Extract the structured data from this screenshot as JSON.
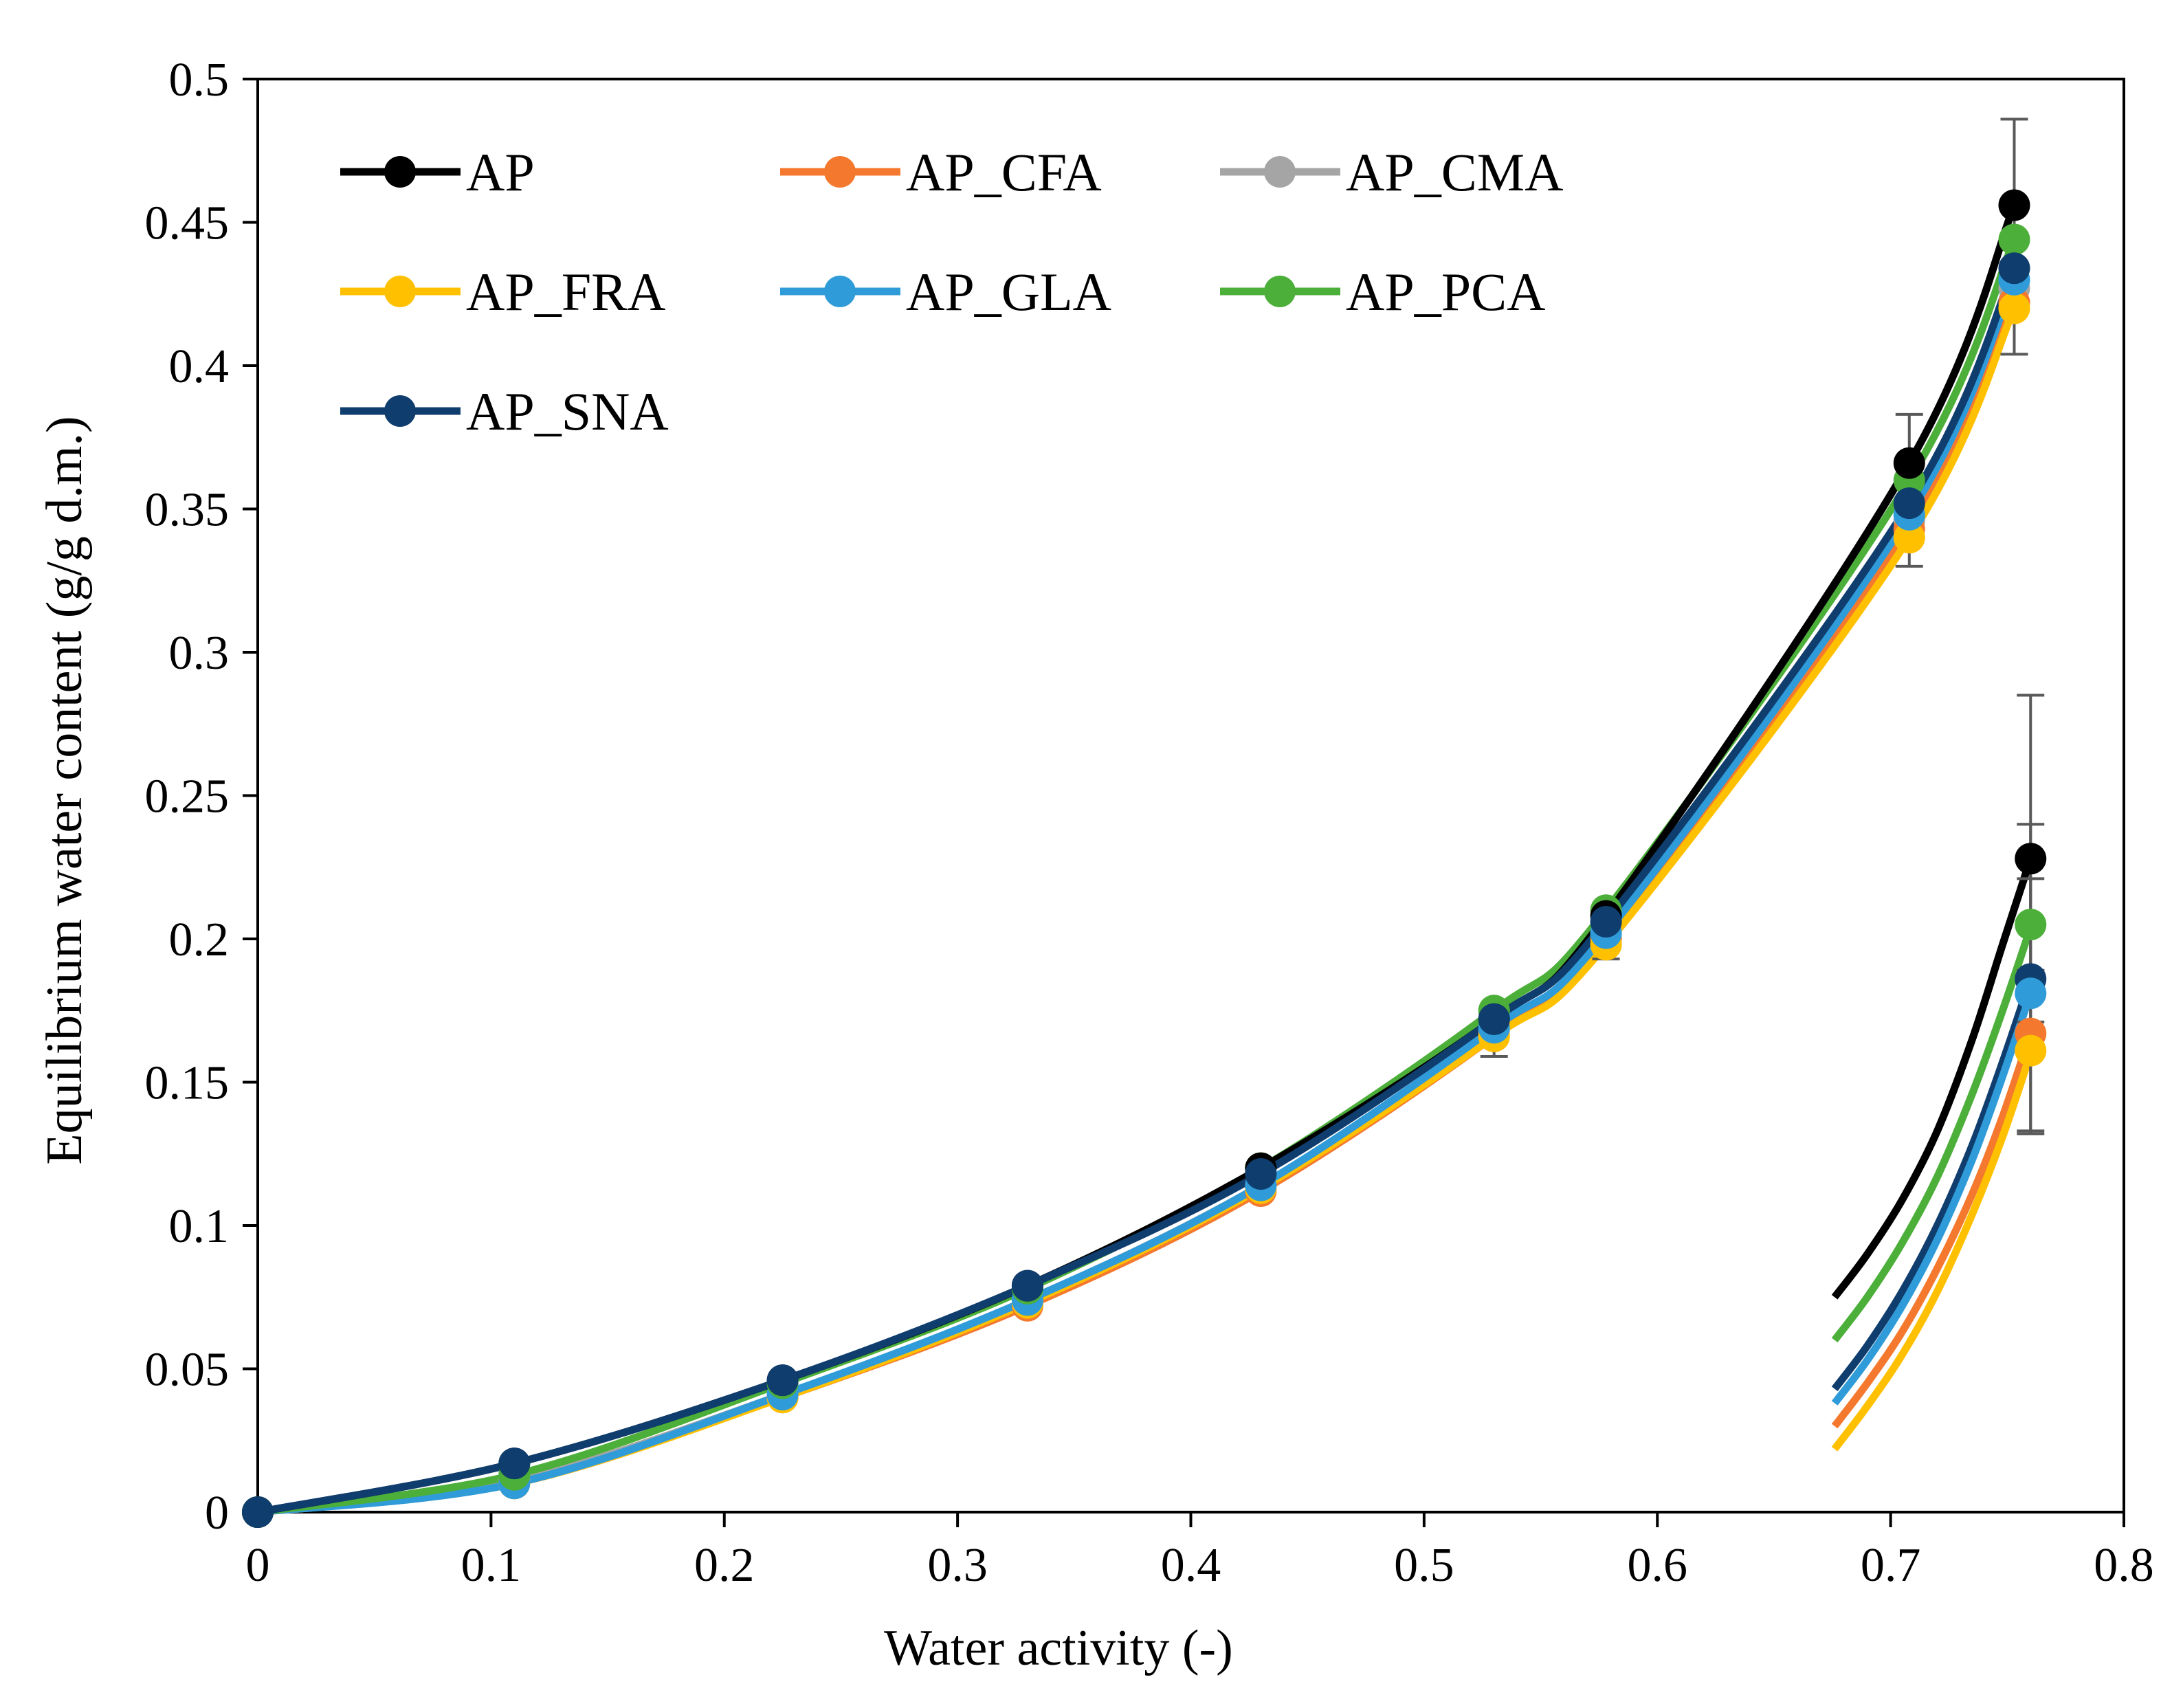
{
  "chart_data": {
    "type": "line",
    "xlabel": "Water activity (-)",
    "ylabel": "Equilibrium water content (g/g d.m.)",
    "xlim": [
      0,
      0.8
    ],
    "ylim": [
      0,
      0.5
    ],
    "xticks": [
      "0",
      "0.1",
      "0.2",
      "0.3",
      "0.4",
      "0.5",
      "0.6",
      "0.7",
      "0.8"
    ],
    "yticks": [
      "0",
      "0.05",
      "0.1",
      "0.15",
      "0.2",
      "0.25",
      "0.3",
      "0.35",
      "0.4",
      "0.45",
      "0.5"
    ],
    "grid": false,
    "legend_position": "top-left",
    "error_bars": true,
    "series": [
      {
        "name": "AP",
        "color": "#000000",
        "x": [
          0,
          0.11,
          0.225,
          0.33,
          0.43,
          0.53,
          0.578,
          0.708,
          0.753
        ],
        "y": [
          0,
          0.017,
          0.046,
          0.079,
          0.12,
          0.172,
          0.208,
          0.366,
          0.456
        ],
        "err": [
          0,
          0,
          0,
          0,
          0,
          0,
          0,
          0.017,
          0.03
        ]
      },
      {
        "name": "AP_CFA",
        "color": "#F4792F",
        "x": [
          0,
          0.11,
          0.225,
          0.33,
          0.43,
          0.53,
          0.578,
          0.708,
          0.753
        ],
        "y": [
          0,
          0.01,
          0.04,
          0.072,
          0.112,
          0.166,
          0.2,
          0.343,
          0.422
        ],
        "err": [
          0,
          0,
          0,
          0,
          0,
          0,
          0,
          0,
          0
        ]
      },
      {
        "name": "AP_CMA",
        "color": "#A5A5A5",
        "x": [
          0,
          0.11,
          0.225,
          0.33,
          0.43,
          0.53,
          0.578,
          0.708,
          0.753
        ],
        "y": [
          0,
          0.011,
          0.041,
          0.074,
          0.114,
          0.168,
          0.202,
          0.346,
          0.427
        ],
        "err": [
          0,
          0,
          0,
          0,
          0,
          0,
          0,
          0,
          0
        ]
      },
      {
        "name": "AP_FRA",
        "color": "#FFC000",
        "x": [
          0,
          0.11,
          0.225,
          0.33,
          0.43,
          0.53,
          0.578,
          0.708,
          0.753
        ],
        "y": [
          0,
          0.01,
          0.04,
          0.073,
          0.113,
          0.166,
          0.198,
          0.34,
          0.42
        ],
        "err": [
          0,
          0,
          0,
          0,
          0,
          0.007,
          0.005,
          0.01,
          0.016
        ]
      },
      {
        "name": "AP_GLA",
        "color": "#2F9BD9",
        "x": [
          0,
          0.11,
          0.225,
          0.33,
          0.43,
          0.53,
          0.578,
          0.708,
          0.753
        ],
        "y": [
          0,
          0.01,
          0.041,
          0.074,
          0.114,
          0.169,
          0.202,
          0.348,
          0.43
        ],
        "err": [
          0,
          0,
          0,
          0,
          0,
          0,
          0,
          0,
          0
        ]
      },
      {
        "name": "AP_PCA",
        "color": "#4CAF3A",
        "x": [
          0,
          0.11,
          0.225,
          0.33,
          0.43,
          0.53,
          0.578,
          0.708,
          0.753
        ],
        "y": [
          0,
          0.013,
          0.045,
          0.078,
          0.12,
          0.175,
          0.21,
          0.36,
          0.444
        ],
        "err": [
          0,
          0,
          0,
          0,
          0,
          0,
          0,
          0,
          0
        ]
      },
      {
        "name": "AP_SNA",
        "color": "#0F3D6E",
        "x": [
          0,
          0.11,
          0.225,
          0.33,
          0.43,
          0.53,
          0.578,
          0.708,
          0.753
        ],
        "y": [
          0,
          0.017,
          0.046,
          0.079,
          0.118,
          0.172,
          0.206,
          0.352,
          0.434
        ],
        "err": [
          0,
          0,
          0,
          0,
          0,
          0,
          0,
          0,
          0
        ]
      }
    ],
    "fragments": [
      {
        "name": "AP",
        "color": "#000000",
        "x": [
          0.676,
          0.69,
          0.705,
          0.72,
          0.735,
          0.748,
          0.76
        ],
        "y": [
          0.075,
          0.09,
          0.109,
          0.133,
          0.165,
          0.198,
          0.228
        ],
        "err": 0.057,
        "marker_x": 0.76,
        "marker_y": 0.228
      },
      {
        "name": "AP_PCA",
        "color": "#4CAF3A",
        "x": [
          0.676,
          0.69,
          0.705,
          0.72,
          0.735,
          0.748,
          0.76
        ],
        "y": [
          0.06,
          0.075,
          0.094,
          0.117,
          0.146,
          0.175,
          0.204
        ],
        "err": 0.016,
        "marker_x": 0.76,
        "marker_y": 0.205
      },
      {
        "name": "AP_SNA",
        "color": "#0F3D6E",
        "x": [
          0.676,
          0.69,
          0.705,
          0.72,
          0.735,
          0.748,
          0.76
        ],
        "y": [
          0.043,
          0.058,
          0.077,
          0.1,
          0.128,
          0.157,
          0.186
        ],
        "err": 0.054,
        "marker_x": 0.76,
        "marker_y": 0.186
      },
      {
        "name": "AP_GLA",
        "color": "#2F9BD9",
        "x": [
          0.676,
          0.69,
          0.705,
          0.72,
          0.735,
          0.748,
          0.76
        ],
        "y": [
          0.038,
          0.053,
          0.072,
          0.095,
          0.123,
          0.152,
          0.181
        ],
        "err": 0,
        "marker_x": 0.76,
        "marker_y": 0.181
      },
      {
        "name": "AP_CFA",
        "color": "#F4792F",
        "x": [
          0.676,
          0.69,
          0.705,
          0.72,
          0.735,
          0.748,
          0.76
        ],
        "y": [
          0.03,
          0.045,
          0.063,
          0.085,
          0.111,
          0.138,
          0.167
        ],
        "err": 0,
        "marker_x": 0.76,
        "marker_y": 0.167
      },
      {
        "name": "AP_FRA",
        "color": "#FFC000",
        "x": [
          0.676,
          0.69,
          0.705,
          0.72,
          0.735,
          0.748,
          0.76
        ],
        "y": [
          0.022,
          0.037,
          0.055,
          0.077,
          0.104,
          0.131,
          0.16
        ],
        "err": 0.028,
        "marker_x": 0.76,
        "marker_y": 0.161
      }
    ]
  }
}
